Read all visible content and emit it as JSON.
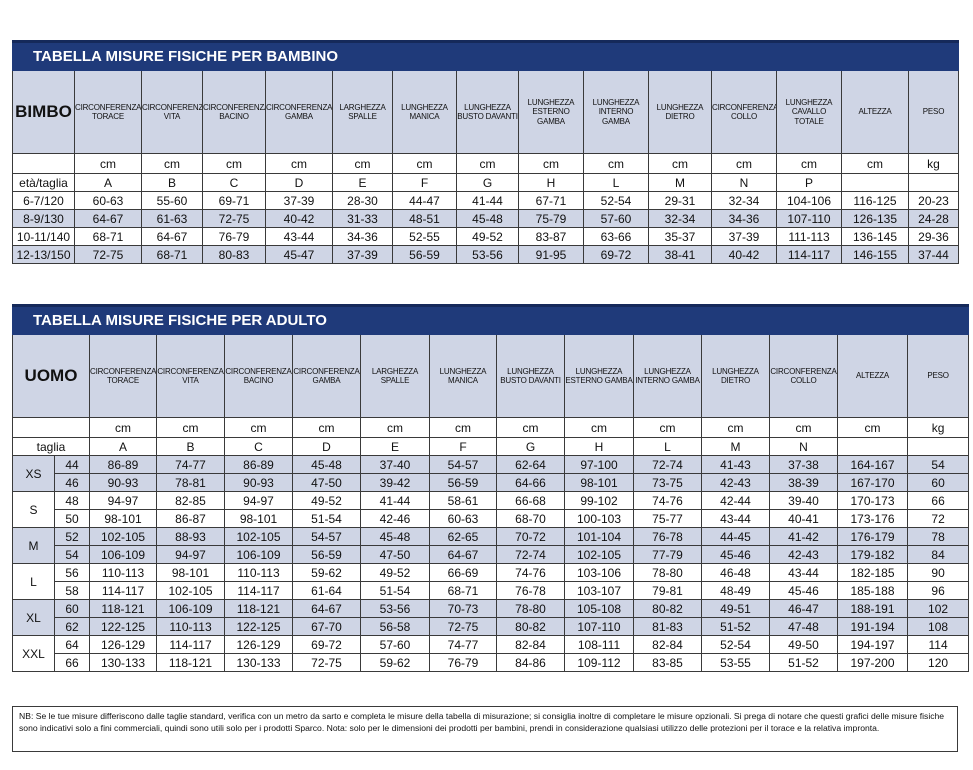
{
  "kids": {
    "title": "TABELLA MISURE FISICHE PER BAMBINO",
    "corner": "BIMBO",
    "headers": [
      "CIRCONFERENZA TORACE",
      "CIRCONFERENZA VITA",
      "CIRCONFERENZA BACINO",
      "CIRCONFERENZA GAMBA",
      "LARGHEZZA SPALLE",
      "LUNGHEZZA MANICA",
      "LUNGHEZZA BUSTO DAVANTI",
      "LUNGHEZZA ESTERNO GAMBA",
      "LUNGHEZZA INTERNO GAMBA",
      "LUNGHEZZA DIETRO",
      "CIRCONFERENZA COLLO",
      "LUNGHEZZA CAVALLO TOTALE",
      "ALTEZZA",
      "PESO"
    ],
    "units": [
      "cm",
      "cm",
      "cm",
      "cm",
      "cm",
      "cm",
      "cm",
      "cm",
      "cm",
      "cm",
      "cm",
      "cm",
      "cm",
      "kg"
    ],
    "letters_label": "età/taglia",
    "letters": [
      "A",
      "B",
      "C",
      "D",
      "E",
      "F",
      "G",
      "H",
      "L",
      "M",
      "N",
      "P",
      "",
      ""
    ],
    "rows": [
      {
        "size": "6-7/120",
        "values": [
          "60-63",
          "55-60",
          "69-71",
          "37-39",
          "28-30",
          "44-47",
          "41-44",
          "67-71",
          "52-54",
          "29-31",
          "32-34",
          "104-106",
          "116-125",
          "20-23"
        ]
      },
      {
        "size": "8-9/130",
        "values": [
          "64-67",
          "61-63",
          "72-75",
          "40-42",
          "31-33",
          "48-51",
          "45-48",
          "75-79",
          "57-60",
          "32-34",
          "34-36",
          "107-110",
          "126-135",
          "24-28"
        ]
      },
      {
        "size": "10-11/140",
        "values": [
          "68-71",
          "64-67",
          "76-79",
          "43-44",
          "34-36",
          "52-55",
          "49-52",
          "83-87",
          "63-66",
          "35-37",
          "37-39",
          "111-113",
          "136-145",
          "29-36"
        ]
      },
      {
        "size": "12-13/150",
        "values": [
          "72-75",
          "68-71",
          "80-83",
          "45-47",
          "37-39",
          "56-59",
          "53-56",
          "91-95",
          "69-72",
          "38-41",
          "40-42",
          "114-117",
          "146-155",
          "37-44"
        ]
      }
    ]
  },
  "adult": {
    "title": "TABELLA MISURE FISICHE PER ADULTO",
    "corner": "UOMO",
    "headers": [
      "CIRCONFERENZA TORACE",
      "CIRCONFERENZA VITA",
      "CIRCONFERENZA BACINO",
      "CIRCONFERENZA GAMBA",
      "LARGHEZZA SPALLE",
      "LUNGHEZZA MANICA",
      "LUNGHEZZA BUSTO DAVANTI",
      "LUNGHEZZA ESTERNO GAMBA",
      "LUNGHEZZA INTERNO GAMBA",
      "LUNGHEZZA DIETRO",
      "CIRCONFERENZA COLLO",
      "ALTEZZA",
      "PESO"
    ],
    "units": [
      "cm",
      "cm",
      "cm",
      "cm",
      "cm",
      "cm",
      "cm",
      "cm",
      "cm",
      "cm",
      "cm",
      "cm",
      "kg"
    ],
    "letters_label": "taglia",
    "letters": [
      "A",
      "B",
      "C",
      "D",
      "E",
      "F",
      "G",
      "H",
      "L",
      "M",
      "N",
      "",
      ""
    ],
    "groups": [
      {
        "size": "XS",
        "rows": [
          {
            "taglia": "44",
            "values": [
              "86-89",
              "74-77",
              "86-89",
              "45-48",
              "37-40",
              "54-57",
              "62-64",
              "97-100",
              "72-74",
              "41-43",
              "37-38",
              "164-167",
              "54"
            ]
          },
          {
            "taglia": "46",
            "values": [
              "90-93",
              "78-81",
              "90-93",
              "47-50",
              "39-42",
              "56-59",
              "64-66",
              "98-101",
              "73-75",
              "42-43",
              "38-39",
              "167-170",
              "60"
            ]
          }
        ]
      },
      {
        "size": "S",
        "rows": [
          {
            "taglia": "48",
            "values": [
              "94-97",
              "82-85",
              "94-97",
              "49-52",
              "41-44",
              "58-61",
              "66-68",
              "99-102",
              "74-76",
              "42-44",
              "39-40",
              "170-173",
              "66"
            ]
          },
          {
            "taglia": "50",
            "values": [
              "98-101",
              "86-87",
              "98-101",
              "51-54",
              "42-46",
              "60-63",
              "68-70",
              "100-103",
              "75-77",
              "43-44",
              "40-41",
              "173-176",
              "72"
            ]
          }
        ]
      },
      {
        "size": "M",
        "rows": [
          {
            "taglia": "52",
            "values": [
              "102-105",
              "88-93",
              "102-105",
              "54-57",
              "45-48",
              "62-65",
              "70-72",
              "101-104",
              "76-78",
              "44-45",
              "41-42",
              "176-179",
              "78"
            ]
          },
          {
            "taglia": "54",
            "values": [
              "106-109",
              "94-97",
              "106-109",
              "56-59",
              "47-50",
              "64-67",
              "72-74",
              "102-105",
              "77-79",
              "45-46",
              "42-43",
              "179-182",
              "84"
            ]
          }
        ]
      },
      {
        "size": "L",
        "rows": [
          {
            "taglia": "56",
            "values": [
              "110-113",
              "98-101",
              "110-113",
              "59-62",
              "49-52",
              "66-69",
              "74-76",
              "103-106",
              "78-80",
              "46-48",
              "43-44",
              "182-185",
              "90"
            ]
          },
          {
            "taglia": "58",
            "values": [
              "114-117",
              "102-105",
              "114-117",
              "61-64",
              "51-54",
              "68-71",
              "76-78",
              "103-107",
              "79-81",
              "48-49",
              "45-46",
              "185-188",
              "96"
            ]
          }
        ]
      },
      {
        "size": "XL",
        "rows": [
          {
            "taglia": "60",
            "values": [
              "118-121",
              "106-109",
              "118-121",
              "64-67",
              "53-56",
              "70-73",
              "78-80",
              "105-108",
              "80-82",
              "49-51",
              "46-47",
              "188-191",
              "102"
            ]
          },
          {
            "taglia": "62",
            "values": [
              "122-125",
              "110-113",
              "122-125",
              "67-70",
              "56-58",
              "72-75",
              "80-82",
              "107-110",
              "81-83",
              "51-52",
              "47-48",
              "191-194",
              "108"
            ]
          }
        ]
      },
      {
        "size": "XXL",
        "rows": [
          {
            "taglia": "64",
            "values": [
              "126-129",
              "114-117",
              "126-129",
              "69-72",
              "57-60",
              "74-77",
              "82-84",
              "108-111",
              "82-84",
              "52-54",
              "49-50",
              "194-197",
              "114"
            ]
          },
          {
            "taglia": "66",
            "values": [
              "130-133",
              "118-121",
              "130-133",
              "72-75",
              "59-62",
              "76-79",
              "84-86",
              "109-112",
              "83-85",
              "53-55",
              "51-52",
              "197-200",
              "120"
            ]
          }
        ]
      }
    ]
  },
  "note": "NB: Se le tue misure differiscono dalle taglie standard, verifica con un metro da sarto e completa le misure della tabella di misurazione; si consiglia inoltre di completare le misure opzionali. Si prega di notare che questi grafici delle misure fisiche sono indicativi solo a fini commerciali, quindi sono utili solo per i prodotti Sparco. Nota: solo per le dimensioni dei prodotti per bambini, prendi in considerazione qualsiasi utilizzo delle protezioni per il torace e la relativa impronta."
}
